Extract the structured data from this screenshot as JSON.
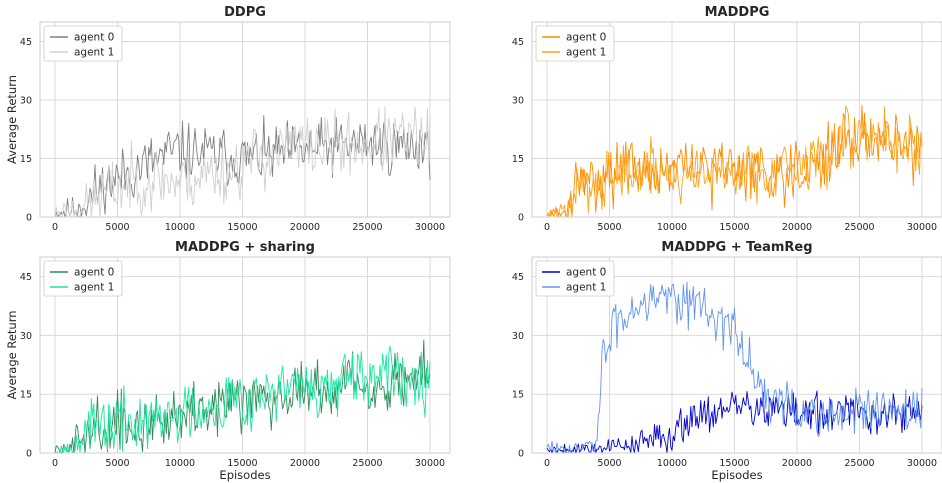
{
  "chart_data": [
    {
      "type": "line",
      "title": "DDPG",
      "xlabel": "",
      "ylabel": "Average Return",
      "xlim": [
        -1200,
        31600
      ],
      "ylim": [
        0,
        50
      ],
      "xticks": [
        0,
        5000,
        10000,
        15000,
        20000,
        25000,
        30000
      ],
      "yticks": [
        0,
        15,
        30,
        45
      ],
      "legend": "upper-left",
      "grid": true,
      "series": [
        {
          "name": "agent 0",
          "color": "#808080",
          "gen": {
            "seed": 11,
            "start": 0,
            "end": 30000,
            "pts": [
              [
                0,
                1
              ],
              [
                1500,
                2
              ],
              [
                2500,
                4
              ],
              [
                3500,
                7
              ],
              [
                5000,
                10
              ],
              [
                7000,
                13
              ],
              [
                9000,
                16
              ],
              [
                10000,
                17
              ],
              [
                12500,
                16
              ],
              [
                15000,
                15
              ],
              [
                17500,
                16
              ],
              [
                20000,
                17
              ],
              [
                22500,
                18
              ],
              [
                25000,
                19
              ],
              [
                27500,
                18
              ],
              [
                30000,
                19
              ]
            ],
            "noise": 4.0
          }
        },
        {
          "name": "agent 1",
          "color": "#d0d0d0",
          "gen": {
            "seed": 23,
            "start": 0,
            "end": 30000,
            "pts": [
              [
                0,
                1
              ],
              [
                1500,
                2
              ],
              [
                2500,
                3
              ],
              [
                4000,
                6
              ],
              [
                6000,
                9
              ],
              [
                8000,
                10
              ],
              [
                10000,
                9
              ],
              [
                12000,
                11
              ],
              [
                14000,
                12
              ],
              [
                16000,
                15
              ],
              [
                18000,
                17
              ],
              [
                20000,
                18
              ],
              [
                22500,
                18
              ],
              [
                25000,
                19
              ],
              [
                27500,
                20
              ],
              [
                30000,
                20
              ]
            ],
            "noise": 4.5
          }
        }
      ]
    },
    {
      "type": "line",
      "title": "MADDPG",
      "xlabel": "",
      "ylabel": "",
      "xlim": [
        -1200,
        31600
      ],
      "ylim": [
        0,
        50
      ],
      "xticks": [
        0,
        5000,
        10000,
        15000,
        20000,
        25000,
        30000
      ],
      "yticks": [
        0,
        15,
        30,
        45
      ],
      "legend": "upper-left",
      "grid": true,
      "series": [
        {
          "name": "agent 0",
          "color": "#ff8c00",
          "gen": {
            "seed": 31,
            "start": 0,
            "end": 30000,
            "pts": [
              [
                0,
                0.5
              ],
              [
                1500,
                1
              ],
              [
                2200,
                6
              ],
              [
                3000,
                9
              ],
              [
                5000,
                12
              ],
              [
                7500,
                12
              ],
              [
                10000,
                12
              ],
              [
                12500,
                12
              ],
              [
                15000,
                13
              ],
              [
                17500,
                12
              ],
              [
                20000,
                12
              ],
              [
                22500,
                16
              ],
              [
                25000,
                21
              ],
              [
                27500,
                19
              ],
              [
                30000,
                17
              ]
            ],
            "noise": 4.2
          }
        },
        {
          "name": "agent 1",
          "color": "#ffa31a",
          "gen": {
            "seed": 47,
            "start": 0,
            "end": 30000,
            "pts": [
              [
                0,
                0.5
              ],
              [
                1500,
                1
              ],
              [
                2200,
                5
              ],
              [
                3000,
                8
              ],
              [
                5000,
                11
              ],
              [
                7500,
                12
              ],
              [
                10000,
                11
              ],
              [
                12500,
                12
              ],
              [
                15000,
                12
              ],
              [
                17500,
                12
              ],
              [
                20000,
                13
              ],
              [
                22500,
                16
              ],
              [
                25000,
                22
              ],
              [
                27500,
                20
              ],
              [
                30000,
                18
              ]
            ],
            "noise": 4.2
          }
        }
      ]
    },
    {
      "type": "line",
      "title": "MADDPG + sharing",
      "xlabel": "Episodes",
      "ylabel": "Average Return",
      "xlim": [
        -1200,
        31600
      ],
      "ylim": [
        0,
        50
      ],
      "xticks": [
        0,
        5000,
        10000,
        15000,
        20000,
        25000,
        30000
      ],
      "yticks": [
        0,
        15,
        30,
        45
      ],
      "legend": "upper-left",
      "grid": true,
      "series": [
        {
          "name": "agent 0",
          "color": "#2e8b57",
          "gen": {
            "seed": 59,
            "start": 0,
            "end": 30000,
            "pts": [
              [
                0,
                0.5
              ],
              [
                1000,
                1
              ],
              [
                2000,
                4
              ],
              [
                4000,
                7
              ],
              [
                6000,
                7
              ],
              [
                8000,
                8
              ],
              [
                10000,
                10
              ],
              [
                12500,
                13
              ],
              [
                15000,
                14
              ],
              [
                17500,
                16
              ],
              [
                20000,
                16
              ],
              [
                22500,
                17
              ],
              [
                25000,
                17
              ],
              [
                27500,
                19
              ],
              [
                30000,
                20
              ]
            ],
            "noise": 4.0
          }
        },
        {
          "name": "agent 1",
          "color": "#19e59f",
          "gen": {
            "seed": 67,
            "start": 0,
            "end": 30000,
            "pts": [
              [
                0,
                0.5
              ],
              [
                1000,
                1
              ],
              [
                2000,
                4
              ],
              [
                4000,
                7
              ],
              [
                6000,
                8
              ],
              [
                8000,
                8
              ],
              [
                10000,
                10
              ],
              [
                12500,
                13
              ],
              [
                15000,
                14
              ],
              [
                17500,
                16
              ],
              [
                20000,
                16
              ],
              [
                22500,
                17
              ],
              [
                25000,
                18
              ],
              [
                27500,
                20
              ],
              [
                30000,
                21
              ]
            ],
            "noise": 4.3
          }
        }
      ]
    },
    {
      "type": "line",
      "title": "MADDPG + TeamReg",
      "xlabel": "Episodes",
      "ylabel": "",
      "xlim": [
        -1200,
        31600
      ],
      "ylim": [
        0,
        50
      ],
      "xticks": [
        0,
        5000,
        10000,
        15000,
        20000,
        25000,
        30000
      ],
      "yticks": [
        0,
        15,
        30,
        45
      ],
      "legend": "upper-left",
      "grid": true,
      "series": [
        {
          "name": "agent 0",
          "color": "#0000cd",
          "gen": {
            "seed": 79,
            "start": 0,
            "end": 30000,
            "pts": [
              [
                0,
                1
              ],
              [
                2000,
                1
              ],
              [
                4000,
                1.5
              ],
              [
                6000,
                2
              ],
              [
                8000,
                3
              ],
              [
                9500,
                4
              ],
              [
                10500,
                7
              ],
              [
                12000,
                10
              ],
              [
                14000,
                11
              ],
              [
                16000,
                12
              ],
              [
                18000,
                11
              ],
              [
                20000,
                10
              ],
              [
                22500,
                10
              ],
              [
                25000,
                10
              ],
              [
                27500,
                10
              ],
              [
                30000,
                10
              ]
            ],
            "noise": 2.8
          }
        },
        {
          "name": "agent 1",
          "color": "#6495ed",
          "gen": {
            "seed": 83,
            "start": 0,
            "end": 30000,
            "pts": [
              [
                0,
                1
              ],
              [
                3000,
                1
              ],
              [
                4000,
                3
              ],
              [
                4500,
                25
              ],
              [
                5500,
                33
              ],
              [
                7000,
                38
              ],
              [
                8500,
                41
              ],
              [
                10000,
                41
              ],
              [
                12000,
                38
              ],
              [
                14000,
                34
              ],
              [
                15500,
                28
              ],
              [
                17000,
                17
              ],
              [
                18500,
                12
              ],
              [
                20000,
                10
              ],
              [
                22500,
                10
              ],
              [
                25000,
                10
              ],
              [
                27500,
                10
              ],
              [
                30000,
                10
              ]
            ],
            "noise": 3.4
          }
        }
      ]
    }
  ]
}
